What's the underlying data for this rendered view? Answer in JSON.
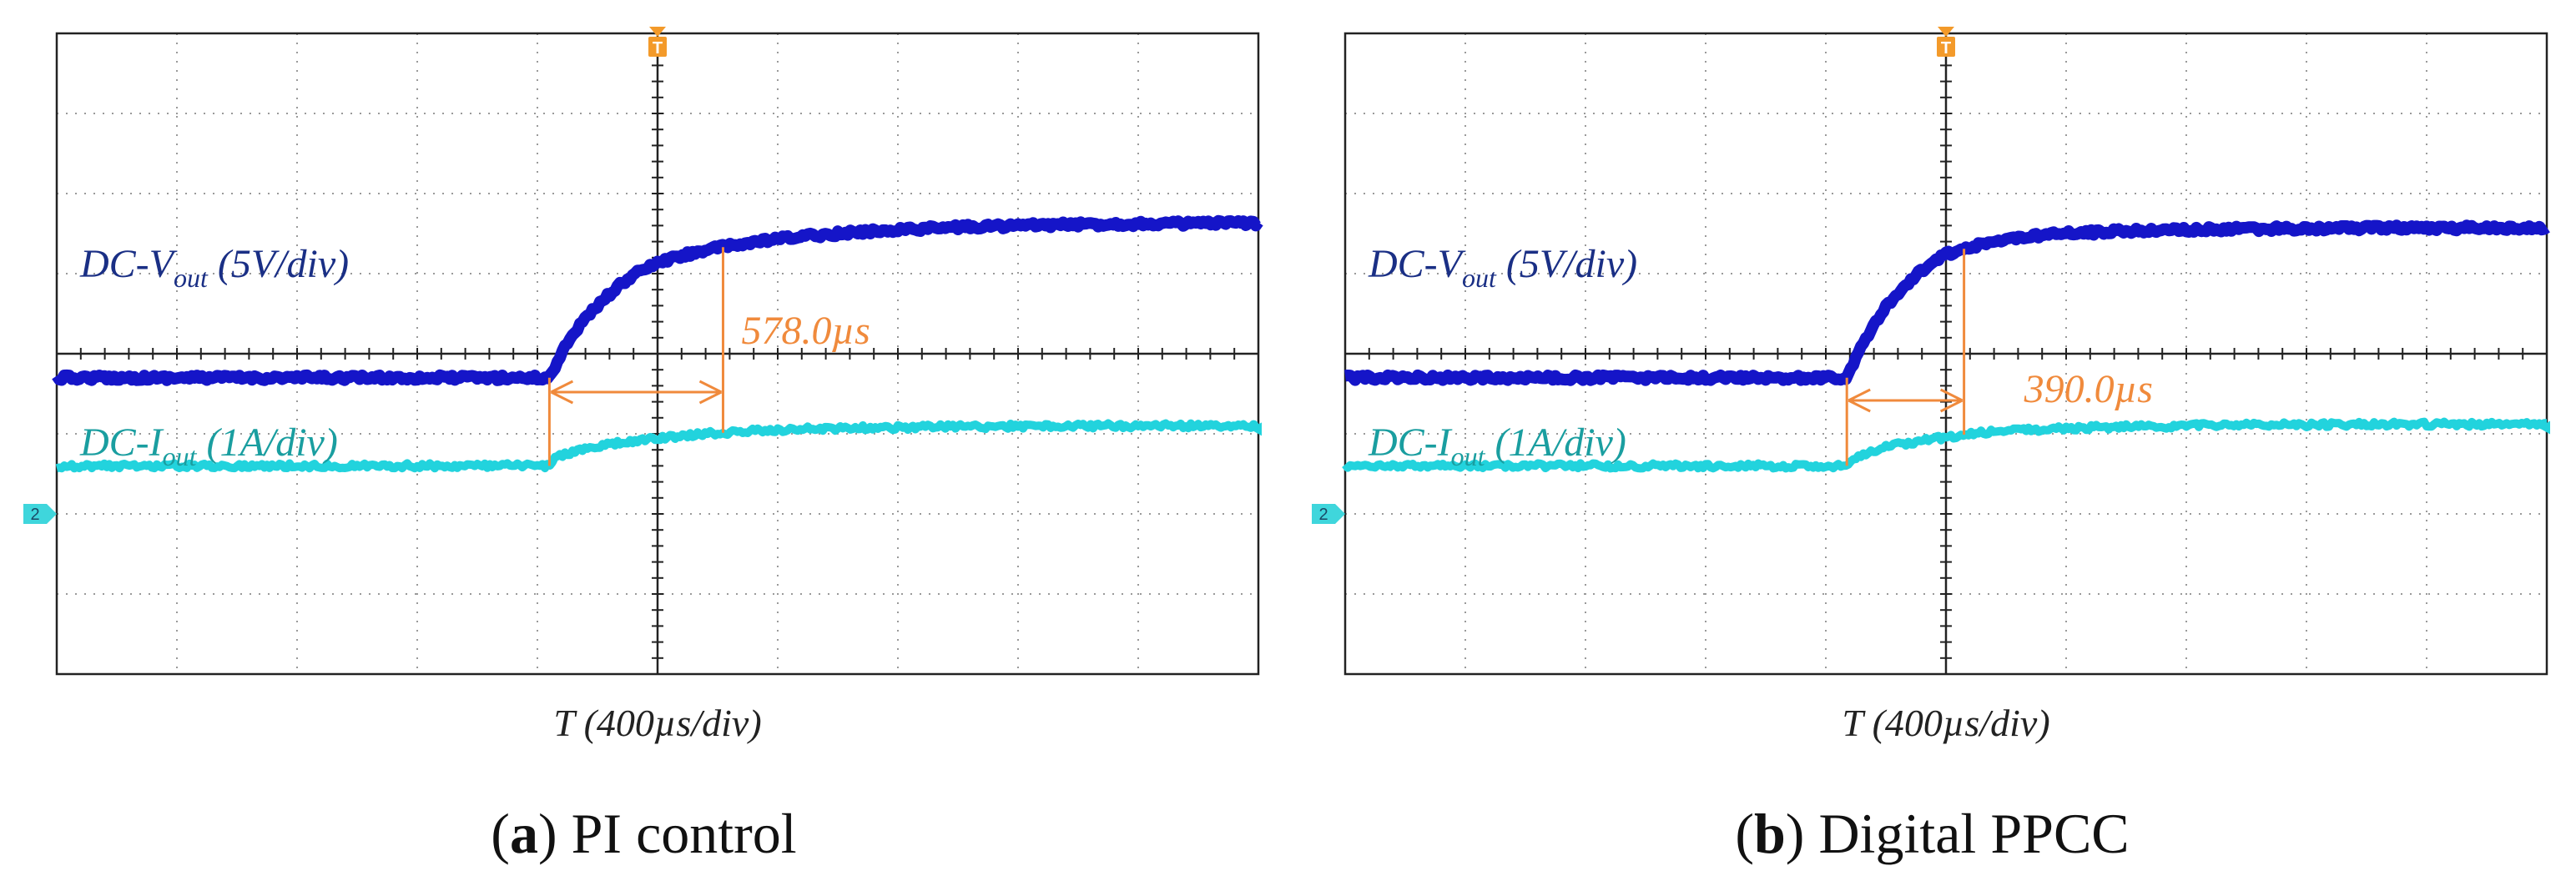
{
  "chart_data": [
    {
      "type": "line",
      "panel_letter": "a",
      "caption": "PI control",
      "xlabel": "T (400µs/div)",
      "grid": true,
      "divisions": {
        "x": 10,
        "y": 8
      },
      "trigger_marker": "T",
      "channel_marker": "2",
      "x_unit": "µs",
      "xlim": [
        -2000,
        2000
      ],
      "series": [
        {
          "name": "DC-Vout (5V/div)",
          "label_main": "DC-V",
          "label_sub": "out",
          "label_tail": " (5V/div)",
          "color": "#1515c8",
          "label_color": "#1a2f85",
          "x": [
            -2000,
            -360,
            -340,
            -300,
            -250,
            -200,
            -150,
            -100,
            -50,
            0,
            50,
            100,
            150,
            200,
            250,
            300,
            400,
            500,
            600,
            800,
            1000,
            1200,
            1500,
            2000
          ],
          "y": [
            -0.3,
            -0.3,
            -0.15,
            0.15,
            0.4,
            0.6,
            0.78,
            0.93,
            1.05,
            1.13,
            1.19,
            1.24,
            1.29,
            1.32,
            1.35,
            1.38,
            1.43,
            1.47,
            1.5,
            1.55,
            1.58,
            1.6,
            1.62,
            1.63
          ]
        },
        {
          "name": "DC-Iout (1A/div)",
          "label_main": "DC-I",
          "label_sub": "out",
          "label_tail": " (1A/div)",
          "color": "#22d3dd",
          "label_color": "#1a9ea0",
          "x": [
            -2000,
            -360,
            -340,
            -300,
            -200,
            -100,
            0,
            100,
            200,
            300,
            400,
            600,
            800,
            1000,
            1500,
            2000
          ],
          "y": [
            -1.4,
            -1.4,
            -1.3,
            -1.24,
            -1.16,
            -1.1,
            -1.06,
            -1.02,
            -0.99,
            -0.97,
            -0.95,
            -0.93,
            -0.92,
            -0.91,
            -0.9,
            -0.9
          ]
        }
      ],
      "annotation": {
        "label": "578.0µs",
        "start": -360,
        "end": 218,
        "color": "#f08a3c"
      }
    },
    {
      "type": "line",
      "panel_letter": "b",
      "caption": "Digital PPCC",
      "xlabel": "T (400µs/div)",
      "grid": true,
      "divisions": {
        "x": 10,
        "y": 8
      },
      "trigger_marker": "T",
      "channel_marker": "2",
      "x_unit": "µs",
      "xlim": [
        -2000,
        2000
      ],
      "series": [
        {
          "name": "DC-Vout (5V/div)",
          "label_main": "DC-V",
          "label_sub": "out",
          "label_tail": " (5V/div)",
          "color": "#1515c8",
          "label_color": "#1a2f85",
          "x": [
            -2000,
            -330,
            -300,
            -250,
            -200,
            -150,
            -100,
            -50,
            0,
            50,
            100,
            150,
            200,
            300,
            400,
            600,
            800,
            1000,
            1500,
            2000
          ],
          "y": [
            -0.3,
            -0.3,
            -0.05,
            0.3,
            0.58,
            0.8,
            0.98,
            1.12,
            1.24,
            1.3,
            1.35,
            1.39,
            1.42,
            1.47,
            1.5,
            1.53,
            1.55,
            1.56,
            1.57,
            1.57
          ]
        },
        {
          "name": "DC-Iout (1A/div)",
          "label_main": "DC-I",
          "label_sub": "out",
          "label_tail": " (1A/div)",
          "color": "#22d3dd",
          "label_color": "#1a9ea0",
          "x": [
            -2000,
            -330,
            -300,
            -250,
            -200,
            -150,
            -100,
            0,
            100,
            200,
            400,
            600,
            800,
            1000,
            1500,
            2000
          ],
          "y": [
            -1.4,
            -1.4,
            -1.3,
            -1.23,
            -1.17,
            -1.13,
            -1.1,
            -1.04,
            -0.99,
            -0.96,
            -0.93,
            -0.91,
            -0.9,
            -0.89,
            -0.88,
            -0.88
          ]
        }
      ],
      "annotation": {
        "label": "390.0µs",
        "start": -330,
        "end": 60,
        "color": "#f08a3c"
      }
    }
  ]
}
